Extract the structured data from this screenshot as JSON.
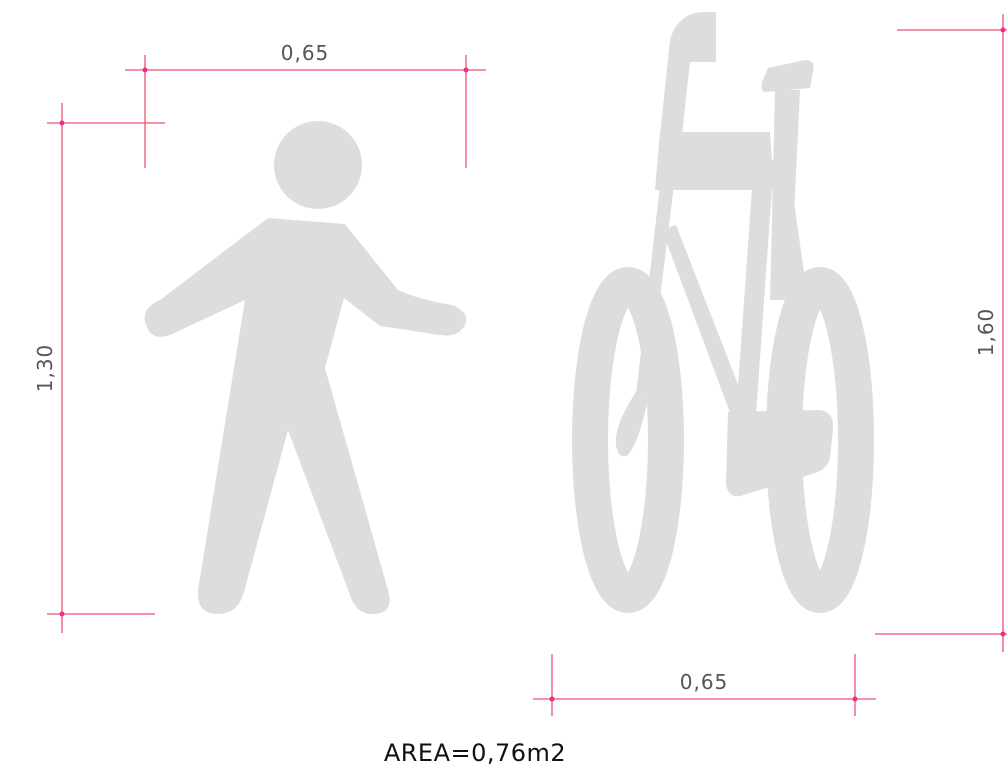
{
  "dimensions": {
    "pedestrian_width": "0,65",
    "pedestrian_height": "1,30",
    "bicycle_width": "0,65",
    "bicycle_height": "1,60"
  },
  "area_label": "AREA=0,76m2",
  "colors": {
    "symbol_fill": "#dddddd",
    "dimension_line": "#f0506e",
    "dimension_point": "#e8308a",
    "dimension_text": "#555555",
    "area_text": "#111111"
  },
  "icons": {
    "pedestrian": "pedestrian-icon",
    "bicycle": "bicycle-icon"
  }
}
